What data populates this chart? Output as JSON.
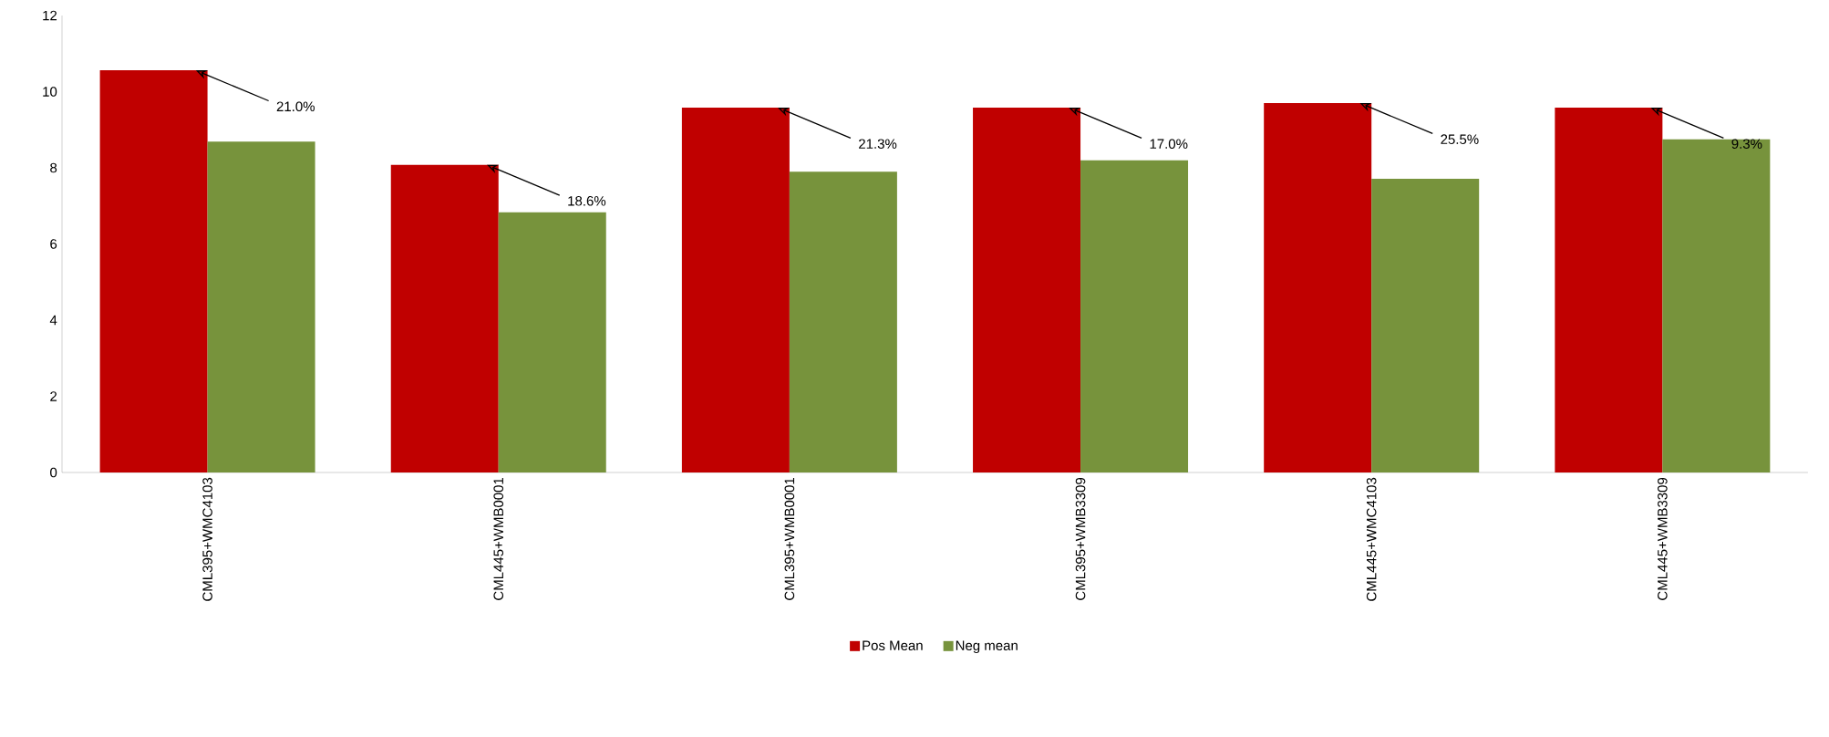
{
  "chart_data": {
    "type": "bar",
    "categories": [
      "CML395+WMC4103",
      "CML445+WMB0001",
      "CML395+WMB0001",
      "CML395+WMB3309",
      "CML445+WMC4103",
      "CML445+WMB3309"
    ],
    "series": [
      {
        "name": "Pos Mean",
        "color": "#c00000",
        "values": [
          10.56,
          8.08,
          9.58,
          9.58,
          9.7,
          9.58
        ]
      },
      {
        "name": "Neg mean",
        "color": "#77933c",
        "values": [
          8.69,
          6.83,
          7.9,
          8.2,
          7.71,
          8.75
        ]
      }
    ],
    "ylim": [
      0,
      12
    ],
    "yticks": [
      0,
      2,
      4,
      6,
      8,
      10,
      12
    ],
    "annotations": [
      {
        "text": "21.0%",
        "x": "CML395+WMC4103",
        "y": 10.56
      },
      {
        "text": "18.6%",
        "x": "CML445+WMB0001",
        "y": 8.08
      },
      {
        "text": "21.3%",
        "x": "CML395+WMB0001",
        "y": 9.58
      },
      {
        "text": "17.0%",
        "x": "CML395+WMB3309",
        "y": 9.58
      },
      {
        "text": "25.5%",
        "x": "CML445+WMC4103",
        "y": 9.7
      },
      {
        "text": "9.3%",
        "x": "CML445+WMB3309",
        "y": 9.58
      }
    ],
    "grid": false,
    "legend": "bottom"
  }
}
